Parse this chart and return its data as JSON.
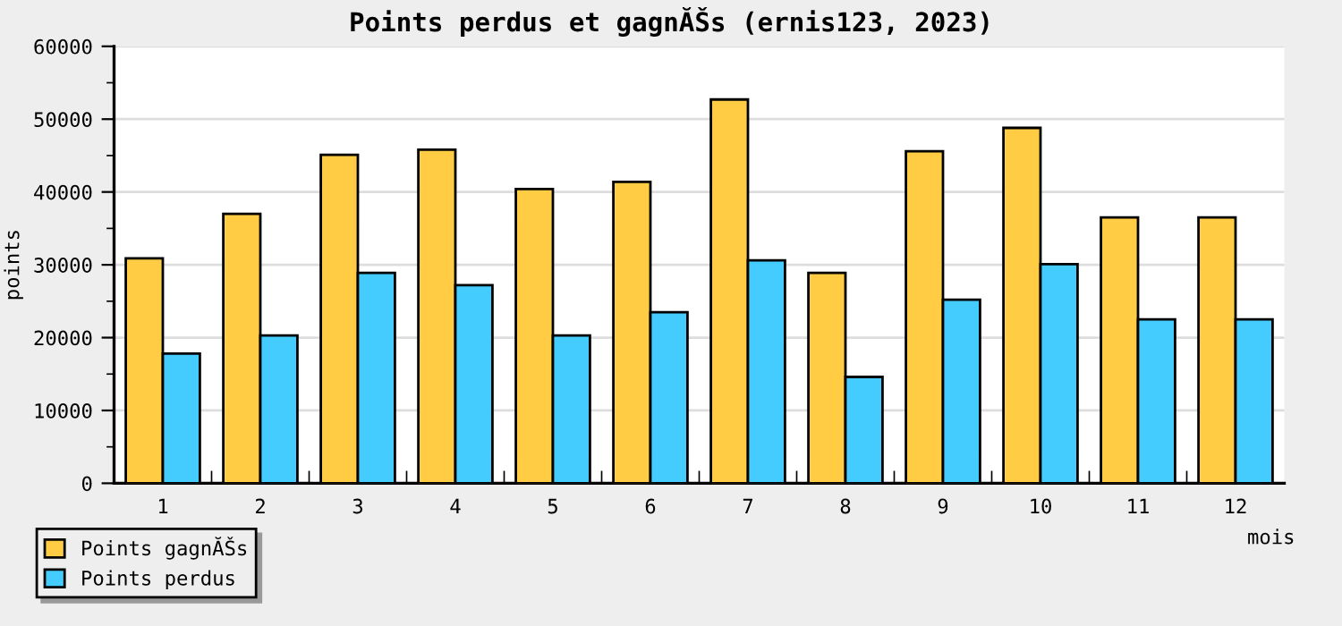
{
  "chart_data": {
    "type": "bar",
    "title": "Points perdus et gagnĂŠs (ernis123, 2023)",
    "xlabel": "mois",
    "ylabel": "points",
    "categories": [
      "1",
      "2",
      "3",
      "4",
      "5",
      "6",
      "7",
      "8",
      "9",
      "10",
      "11",
      "12"
    ],
    "series": [
      {
        "name": "Points gagnĂŠs",
        "color": "#ffcc44",
        "values": [
          30900,
          37000,
          45100,
          45800,
          40400,
          41400,
          52700,
          28900,
          45600,
          48800,
          36500,
          36500
        ]
      },
      {
        "name": "Points perdus",
        "color": "#44ccff",
        "values": [
          17800,
          20300,
          28900,
          27200,
          20300,
          23500,
          30600,
          14600,
          25200,
          30100,
          22500,
          22500
        ]
      }
    ],
    "ylim": [
      0,
      60000
    ],
    "yticks": [
      0,
      10000,
      20000,
      30000,
      40000,
      50000,
      60000
    ],
    "grid": "y",
    "legend": "bottom left"
  }
}
